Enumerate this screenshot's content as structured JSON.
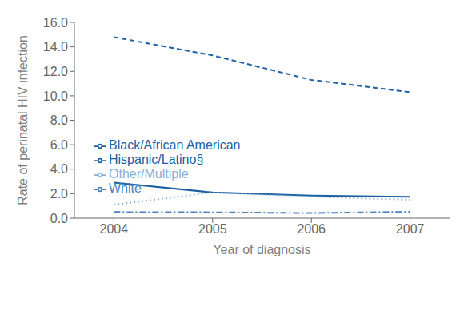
{
  "chart_data": {
    "type": "line",
    "x": [
      2004,
      2005,
      2006,
      2007
    ],
    "series": [
      {
        "name": "Black/African American",
        "color": "#2060a8",
        "line_style": "dashed",
        "values": [
          14.8,
          13.3,
          11.3,
          10.3
        ]
      },
      {
        "name": "Hispanic/Latino§",
        "color": "#1a5fa0",
        "line_style": "solid",
        "values": [
          2.9,
          2.1,
          1.85,
          1.75
        ]
      },
      {
        "name": "White",
        "color": "#4a80c0",
        "line_style": "dashdot",
        "values": [
          0.5,
          0.48,
          0.42,
          0.52
        ]
      },
      {
        "name": "Other/Multiple",
        "color": "#88aed8",
        "line_style": "dotted",
        "values": [
          1.1,
          2.1,
          1.75,
          1.5
        ]
      }
    ],
    "xlabel": "Year of diagnosis",
    "ylabel": "Rate of perinatal HIV infection",
    "xlim": [
      2003.6,
      2007.4
    ],
    "xticks": [
      2004,
      2005,
      2006,
      2007
    ],
    "ylim": [
      0.0,
      16.0
    ],
    "yticks": [
      {
        "value": 0,
        "label": "0.0"
      },
      {
        "value": 2,
        "label": "2.0"
      },
      {
        "value": 4,
        "label": "4.0"
      },
      {
        "value": 6,
        "label": "6.0"
      },
      {
        "value": 8,
        "label": "8.0"
      },
      {
        "value": 10,
        "label": "10.0"
      },
      {
        "value": 12,
        "label": "12.0"
      },
      {
        "value": 14,
        "label": "14.0"
      },
      {
        "value": 16,
        "label": "16.0"
      }
    ],
    "grid": false,
    "legend": "center left"
  }
}
